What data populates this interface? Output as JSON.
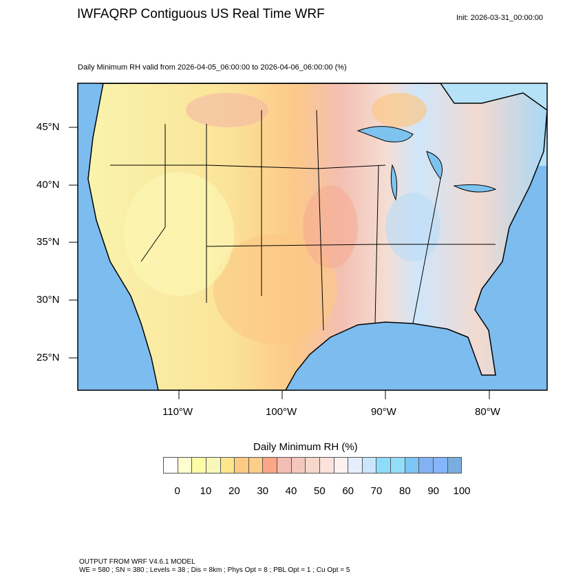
{
  "header": {
    "title": "IWFAQRP Contiguous US Real Time WRF",
    "init": "Init: 2026-03-31_00:00:00",
    "subtitle": "Daily Minimum RH valid from 2026-04-05_06:00:00 to 2026-04-06_06:00:00   (%)"
  },
  "map": {
    "lat_labels": [
      "45°N",
      "40°N",
      "35°N",
      "30°N",
      "25°N"
    ],
    "lon_labels": [
      "110°W",
      "100°W",
      "90°W",
      "80°W"
    ]
  },
  "colorbar": {
    "title": "Daily Minimum RH  (%)",
    "labels": [
      "0",
      "10",
      "20",
      "30",
      "40",
      "50",
      "60",
      "70",
      "80",
      "90",
      "100"
    ],
    "colors": [
      "#ffffff",
      "#fdfdd0",
      "#fcfca8",
      "#f5f8b8",
      "#fee68c",
      "#fecb84",
      "#fecd88",
      "#fda687",
      "#f2bdb2",
      "#f4c7bd",
      "#f5d8ca",
      "#fbe2da",
      "#fdf1f0",
      "#e6edfd",
      "#cae6fd",
      "#8ddcfb",
      "#91def9",
      "#7bc6f6",
      "#82b2f4",
      "#85b5fb",
      "#7aaedf",
      "#80a8c8"
    ]
  },
  "footer": {
    "line1": "OUTPUT FROM WRF V4.6.1 MODEL",
    "line2": "WE = 580 ; SN = 380 ; Levels = 38 ; Dis = 8km ; Phys Opt = 8 ; PBL Opt = 1 ; Cu Opt = 5"
  }
}
